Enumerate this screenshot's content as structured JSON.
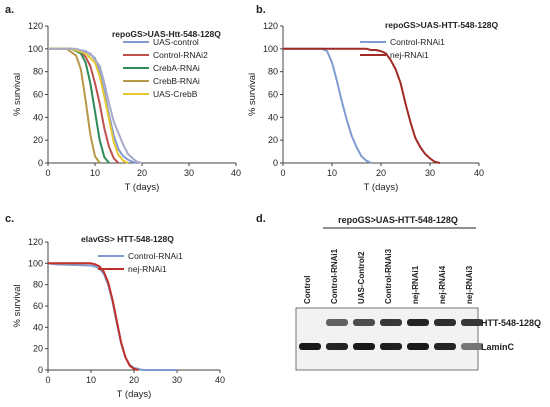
{
  "chart_data": [
    {
      "type": "line",
      "panel": "a.",
      "title": "repoGS>UAS-Htt-548-128Q",
      "xlabel": "T (days)",
      "ylabel": "% survival",
      "xlim": [
        0,
        40
      ],
      "ylim": [
        0,
        120
      ],
      "xticks": [
        0,
        10,
        20,
        30,
        40
      ],
      "yticks": [
        0,
        20,
        40,
        60,
        80,
        100,
        120
      ],
      "legend_position": "top-right",
      "series": [
        {
          "name": "UAS-control",
          "color": "#7f9bd0",
          "x": [
            0,
            5,
            8,
            10,
            11,
            12,
            13,
            14,
            15,
            16,
            17,
            18,
            19
          ],
          "y": [
            100,
            100,
            98,
            92,
            80,
            62,
            42,
            24,
            12,
            6,
            3,
            1,
            0
          ]
        },
        {
          "name": "Control-RNAi2",
          "color": "#c0504d",
          "x": [
            0,
            5,
            7,
            8,
            9,
            10,
            11,
            12,
            13,
            14,
            15
          ],
          "y": [
            100,
            100,
            97,
            93,
            85,
            70,
            52,
            30,
            14,
            4,
            0
          ]
        },
        {
          "name": "CrebA-RNAi",
          "color": "#2e8b57",
          "x": [
            0,
            5,
            7,
            8,
            9,
            10,
            11,
            12,
            13
          ],
          "y": [
            100,
            100,
            96,
            88,
            70,
            45,
            20,
            5,
            0
          ]
        },
        {
          "name": "CrebB-RNAi",
          "color": "#b8964a",
          "x": [
            0,
            4,
            6,
            7,
            8,
            9,
            10,
            11
          ],
          "y": [
            100,
            100,
            94,
            82,
            55,
            25,
            6,
            0
          ]
        },
        {
          "name": "UAS-CrebB",
          "color": "#e8c830",
          "x": [
            0,
            5,
            8,
            10,
            11,
            12,
            13,
            14,
            15,
            16,
            17
          ],
          "y": [
            100,
            100,
            96,
            88,
            76,
            58,
            38,
            18,
            7,
            2,
            0
          ]
        },
        {
          "name": "",
          "color": "#a9a9c9",
          "x": [
            0,
            6,
            9,
            11,
            12,
            13,
            14,
            15,
            16,
            17,
            18,
            19,
            20
          ],
          "y": [
            100,
            100,
            96,
            85,
            70,
            52,
            36,
            26,
            16,
            8,
            4,
            1,
            0
          ]
        }
      ]
    },
    {
      "type": "line",
      "panel": "b.",
      "title": "repoGS>UAS-HTT-548-128Q",
      "xlabel": "T (days)",
      "ylabel": "% survival",
      "xlim": [
        0,
        40
      ],
      "ylim": [
        0,
        120
      ],
      "xticks": [
        0,
        10,
        20,
        30,
        40
      ],
      "yticks": [
        0,
        20,
        40,
        60,
        80,
        100,
        120
      ],
      "legend_position": "top-right",
      "series": [
        {
          "name": "Control-RNAi1",
          "color": "#7f9bd0",
          "x": [
            0,
            8,
            9,
            10,
            11,
            12,
            13,
            14,
            15,
            16,
            17,
            18
          ],
          "y": [
            100,
            100,
            98,
            88,
            72,
            54,
            38,
            24,
            14,
            6,
            2,
            0
          ]
        },
        {
          "name": "nej-RNAi1",
          "color": "#a02a24",
          "x": [
            0,
            17,
            18,
            19,
            20,
            21,
            22,
            23,
            24,
            25,
            26,
            27,
            28,
            29,
            30,
            31,
            32
          ],
          "y": [
            100,
            100,
            99,
            99,
            98,
            96,
            90,
            82,
            70,
            52,
            36,
            22,
            14,
            8,
            4,
            1,
            0
          ]
        }
      ]
    },
    {
      "type": "line",
      "panel": "c.",
      "title": "elavGS> HTT-548-128Q",
      "xlabel": "T (days)",
      "ylabel": "% survival",
      "xlim": [
        0,
        40
      ],
      "ylim": [
        0,
        120
      ],
      "xticks": [
        0,
        10,
        20,
        30,
        40
      ],
      "yticks": [
        0,
        20,
        40,
        60,
        80,
        100,
        120
      ],
      "legend_position": "top-right",
      "series": [
        {
          "name": "Control-RNAi1",
          "color": "#7f9bd0",
          "x": [
            0,
            2,
            10,
            11,
            12,
            13,
            14,
            15,
            16,
            17,
            18,
            19,
            20,
            21,
            22
          ],
          "y": [
            100,
            99,
            98,
            97,
            95,
            90,
            80,
            64,
            44,
            25,
            12,
            5,
            2,
            1,
            0
          ]
        },
        {
          "name": "nej-RNAi1",
          "color": "#c0302a",
          "x": [
            0,
            2,
            10,
            11,
            12,
            13,
            14,
            15,
            16,
            17,
            18,
            19,
            20,
            21
          ],
          "y": [
            100,
            100,
            100,
            99,
            97,
            92,
            82,
            66,
            46,
            26,
            12,
            4,
            1,
            0
          ]
        },
        {
          "name": "",
          "color": "#7f9bd0",
          "x": [
            22,
            30
          ],
          "y": [
            0,
            0
          ]
        }
      ]
    }
  ],
  "blot": {
    "panel": "d.",
    "header": "repoGS>UAS-HTT-548-128Q",
    "lanes": [
      "Control",
      "Control-RNAi1",
      "UAS-Control2",
      "Control-RNAi3",
      "nej-RNAi1",
      "nej-RNAi4",
      "nej-RNAi3"
    ],
    "bands": [
      {
        "label": "HTT-548-128Q",
        "intensity": [
          0.0,
          0.6,
          0.7,
          0.8,
          0.9,
          0.85,
          0.8
        ]
      },
      {
        "label": "LaminC",
        "intensity": [
          0.95,
          0.9,
          0.95,
          0.92,
          0.95,
          0.9,
          0.5
        ]
      }
    ]
  }
}
